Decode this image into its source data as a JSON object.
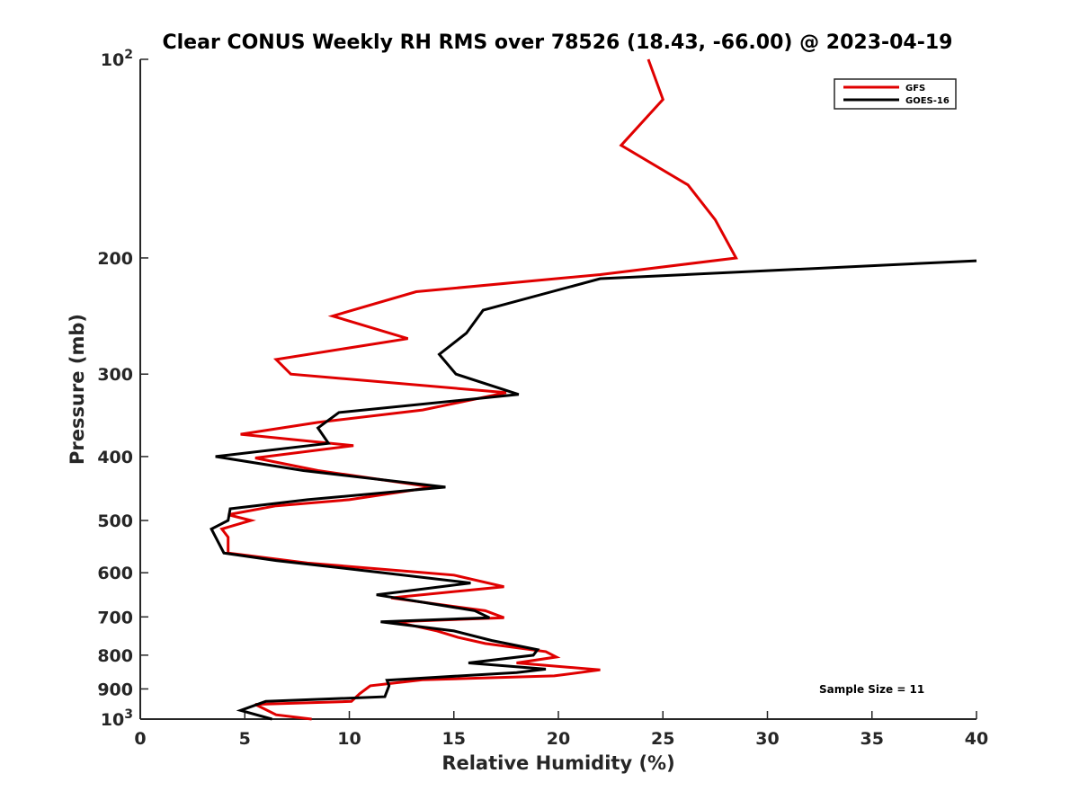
{
  "chart_data": {
    "type": "line",
    "title": "Clear CONUS Weekly RH RMS over 78526 (18.43, -66.00) @ 2023-04-19",
    "xlabel": "Relative Humidity (%)",
    "ylabel": "Pressure (mb)",
    "xlim": [
      0,
      40
    ],
    "ylim": [
      100,
      1000
    ],
    "y_scale": "log",
    "y_reversed": true,
    "x_ticks": [
      0,
      5,
      10,
      15,
      20,
      25,
      30,
      35,
      40
    ],
    "x_tick_labels": [
      "0",
      "5",
      "10",
      "15",
      "20",
      "25",
      "30",
      "35",
      "40"
    ],
    "y_ticks": [
      100,
      200,
      300,
      400,
      500,
      600,
      700,
      800,
      900,
      1000
    ],
    "y_tick_labels": [
      {
        "base": "10",
        "exp": "2"
      },
      {
        "base": "200",
        "exp": ""
      },
      {
        "base": "300",
        "exp": ""
      },
      {
        "base": "400",
        "exp": ""
      },
      {
        "base": "500",
        "exp": ""
      },
      {
        "base": "600",
        "exp": ""
      },
      {
        "base": "700",
        "exp": ""
      },
      {
        "base": "800",
        "exp": ""
      },
      {
        "base": "900",
        "exp": ""
      },
      {
        "base": "10",
        "exp": "3"
      }
    ],
    "grid": false,
    "legend_position": "top-right",
    "annotation": "Sample Size = 11",
    "series": [
      {
        "name": "GFS",
        "color": "#e00000",
        "points": [
          [
            24.3,
            100
          ],
          [
            25.0,
            115
          ],
          [
            23.0,
            135
          ],
          [
            26.2,
            155
          ],
          [
            27.5,
            175
          ],
          [
            28.5,
            200
          ],
          [
            22.0,
            212
          ],
          [
            13.2,
            225
          ],
          [
            9.2,
            245
          ],
          [
            12.8,
            265
          ],
          [
            6.5,
            285
          ],
          [
            7.2,
            300
          ],
          [
            17.5,
            320
          ],
          [
            13.5,
            340
          ],
          [
            8.5,
            355
          ],
          [
            4.8,
            370
          ],
          [
            10.2,
            385
          ],
          [
            5.5,
            402
          ],
          [
            8.5,
            420
          ],
          [
            14.0,
            445
          ],
          [
            10.0,
            465
          ],
          [
            6.5,
            475
          ],
          [
            4.2,
            490
          ],
          [
            5.3,
            500
          ],
          [
            3.9,
            515
          ],
          [
            4.2,
            530
          ],
          [
            4.2,
            560
          ],
          [
            8.0,
            580
          ],
          [
            15.0,
            605
          ],
          [
            17.4,
            630
          ],
          [
            12.0,
            655
          ],
          [
            16.5,
            685
          ],
          [
            17.4,
            702
          ],
          [
            12.2,
            712
          ],
          [
            14.2,
            735
          ],
          [
            15.2,
            752
          ],
          [
            16.5,
            768
          ],
          [
            19.4,
            790
          ],
          [
            19.9,
            805
          ],
          [
            18.0,
            822
          ],
          [
            22.0,
            842
          ],
          [
            19.8,
            860
          ],
          [
            13.5,
            872
          ],
          [
            11.0,
            890
          ],
          [
            10.5,
            915
          ],
          [
            10.1,
            940
          ],
          [
            5.5,
            950
          ],
          [
            6.5,
            985
          ],
          [
            8.2,
            1000
          ]
        ]
      },
      {
        "name": "GOES-16",
        "color": "#000000",
        "points": [
          [
            40.0,
            202
          ],
          [
            22.0,
            215
          ],
          [
            16.4,
            240
          ],
          [
            15.6,
            260
          ],
          [
            14.3,
            280
          ],
          [
            15.1,
            300
          ],
          [
            18.1,
            322
          ],
          [
            9.5,
            343
          ],
          [
            8.5,
            362
          ],
          [
            9.0,
            382
          ],
          [
            3.6,
            400
          ],
          [
            7.8,
            420
          ],
          [
            14.6,
            445
          ],
          [
            8.0,
            465
          ],
          [
            4.3,
            480
          ],
          [
            4.2,
            500
          ],
          [
            3.4,
            515
          ],
          [
            4.0,
            560
          ],
          [
            6.5,
            575
          ],
          [
            12.0,
            602
          ],
          [
            15.8,
            622
          ],
          [
            11.3,
            648
          ],
          [
            16.0,
            685
          ],
          [
            16.7,
            702
          ],
          [
            11.5,
            712
          ],
          [
            15.0,
            735
          ],
          [
            16.8,
            760
          ],
          [
            19.0,
            785
          ],
          [
            18.8,
            800
          ],
          [
            15.7,
            822
          ],
          [
            19.4,
            840
          ],
          [
            18.0,
            850
          ],
          [
            11.8,
            873
          ],
          [
            11.9,
            890
          ],
          [
            11.7,
            925
          ],
          [
            6.0,
            940
          ],
          [
            4.8,
            970
          ],
          [
            6.3,
            1000
          ]
        ]
      }
    ]
  }
}
